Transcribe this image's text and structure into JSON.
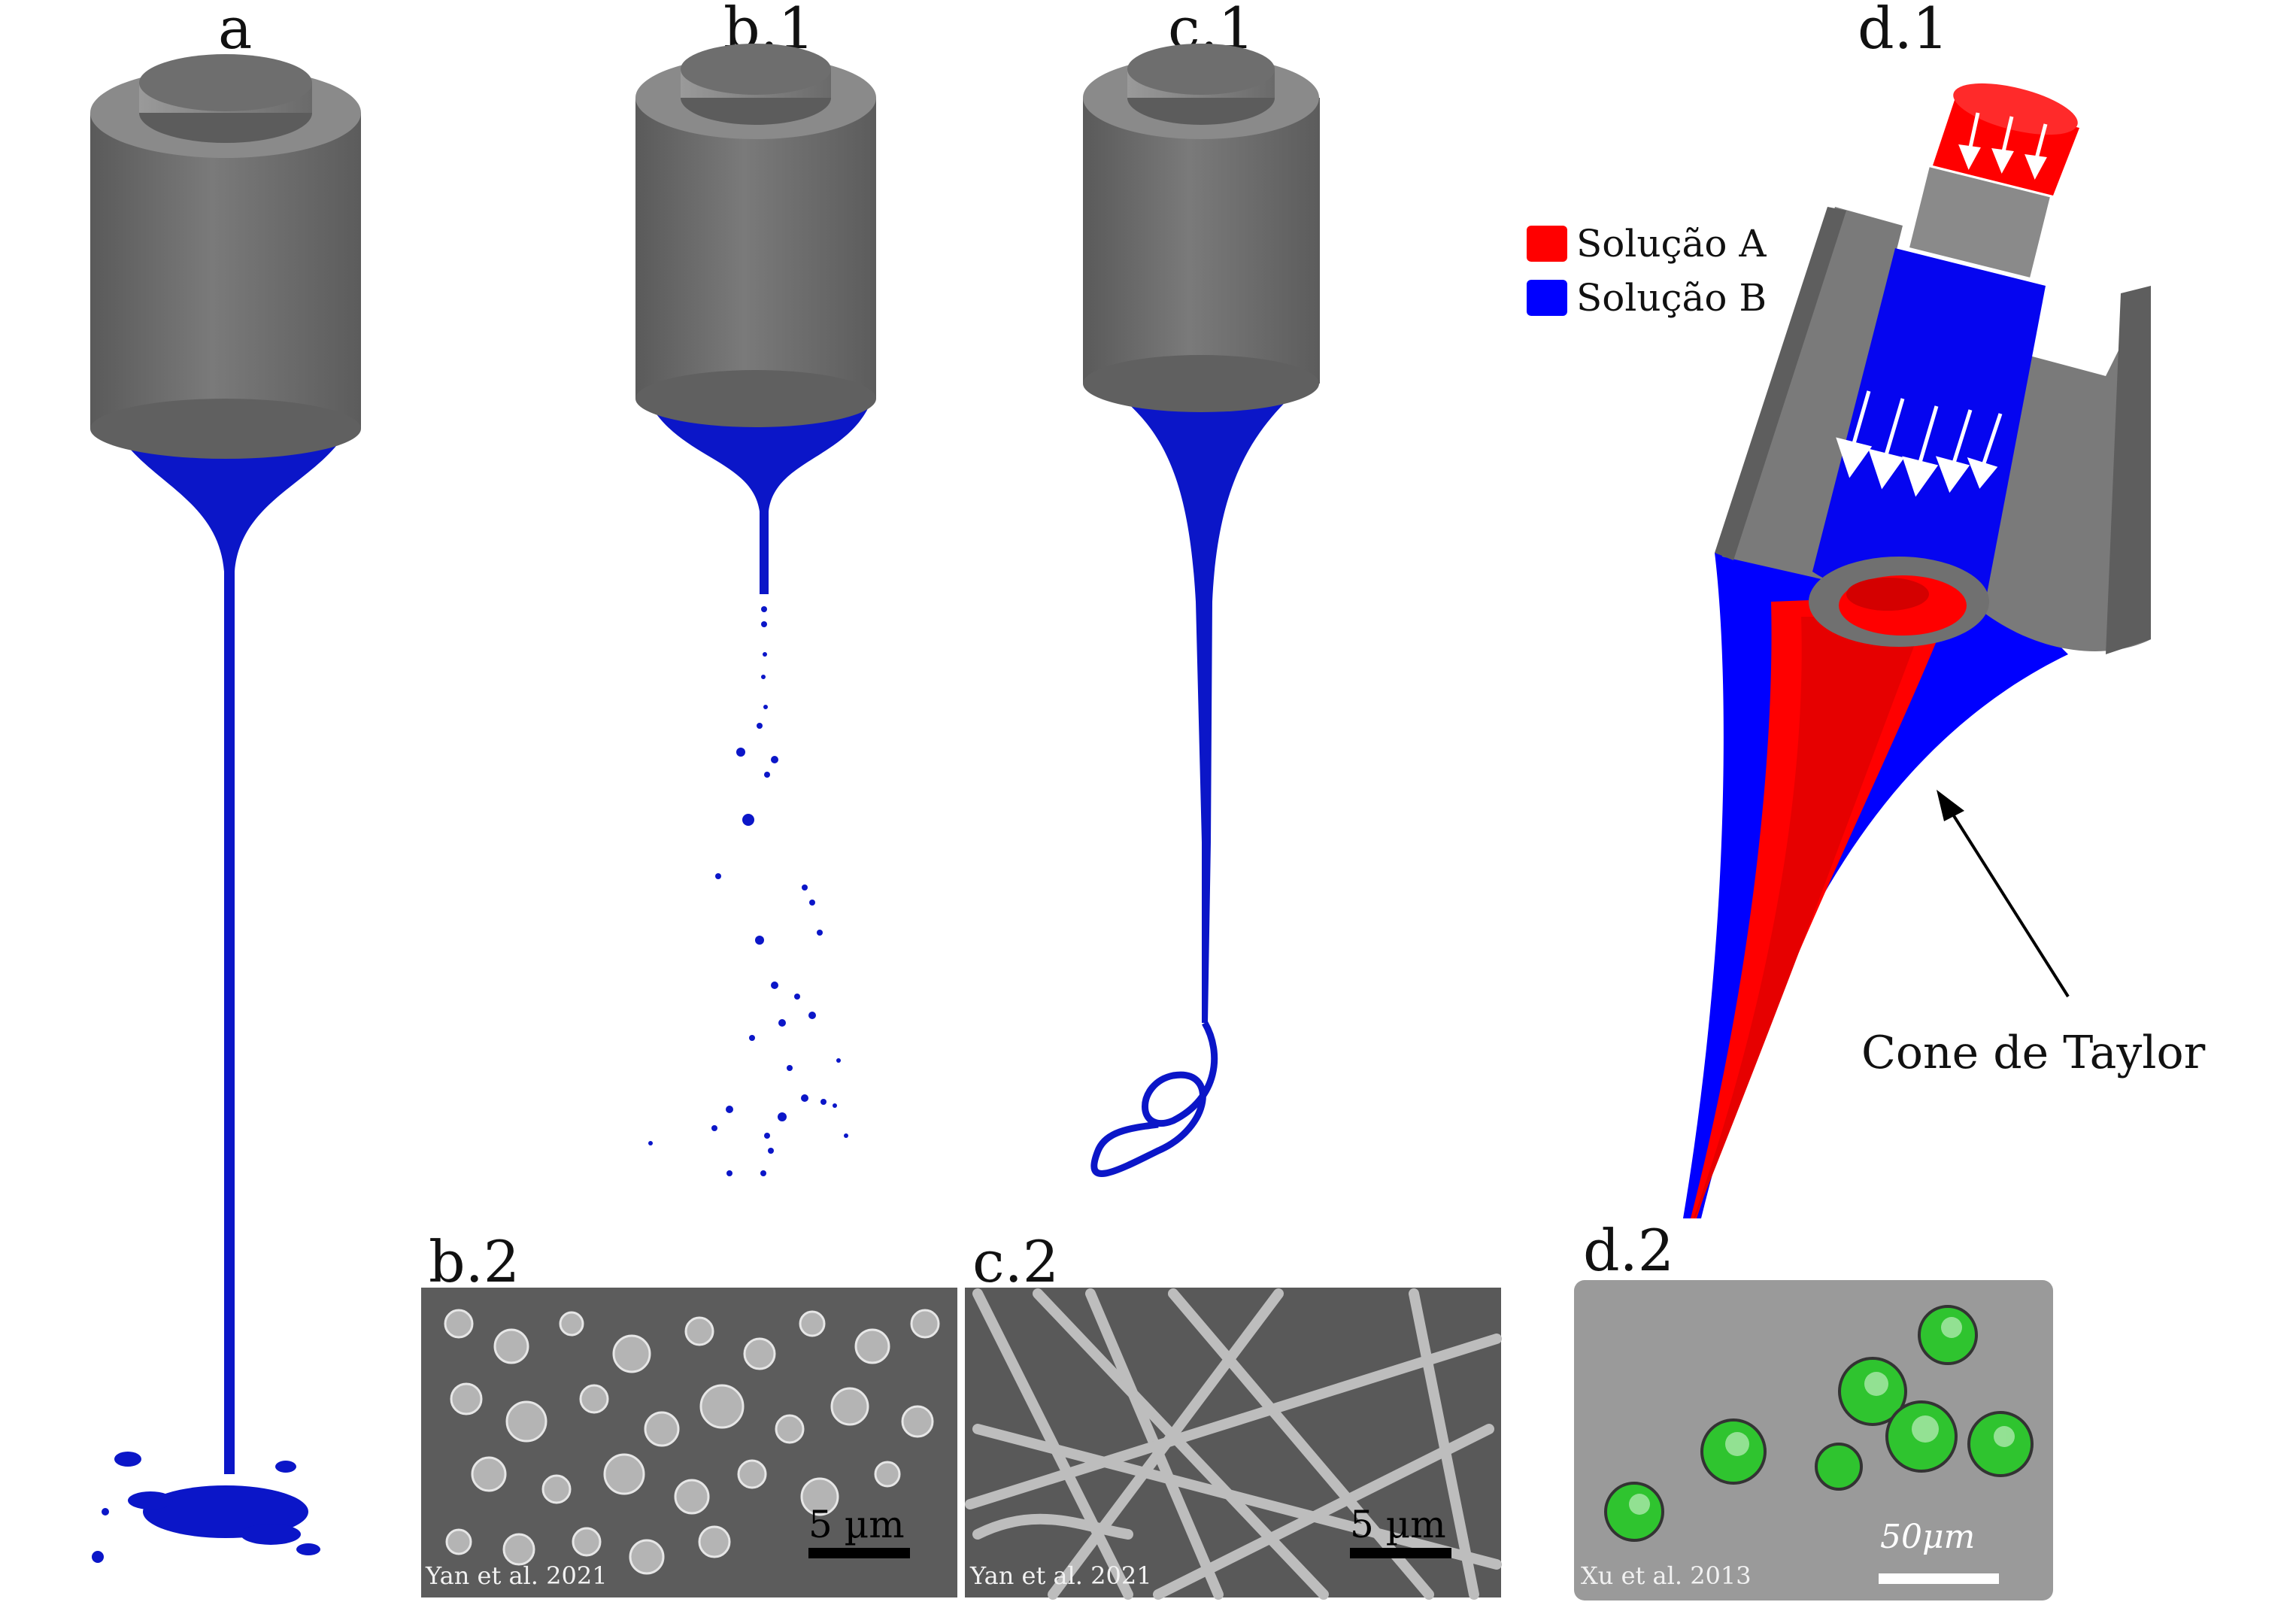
{
  "labels": {
    "a": "a",
    "b1": "b.1",
    "c1": "c.1",
    "d1": "d.1",
    "b2": "b.2",
    "c2": "c.2",
    "d2": "d.2"
  },
  "legend": [
    {
      "label": "Solução A",
      "color": "#ff0000"
    },
    {
      "label": "Solução B",
      "color": "#0000ff"
    }
  ],
  "annotation": "Cone de Taylor",
  "panels": {
    "b2": {
      "credit": "Yan et al. 2021",
      "scale": "5 µm"
    },
    "c2": {
      "credit": "Yan et al. 2021",
      "scale": "5 µm"
    },
    "d2": {
      "credit": "Xu et al. 2013",
      "scale": "50μm"
    }
  },
  "colors": {
    "nozzle": "#707070",
    "nozzle_dark": "#555555",
    "solution_a": "#ff0000",
    "solution_b": "#0000ff",
    "fluid": "#0a14c8"
  }
}
